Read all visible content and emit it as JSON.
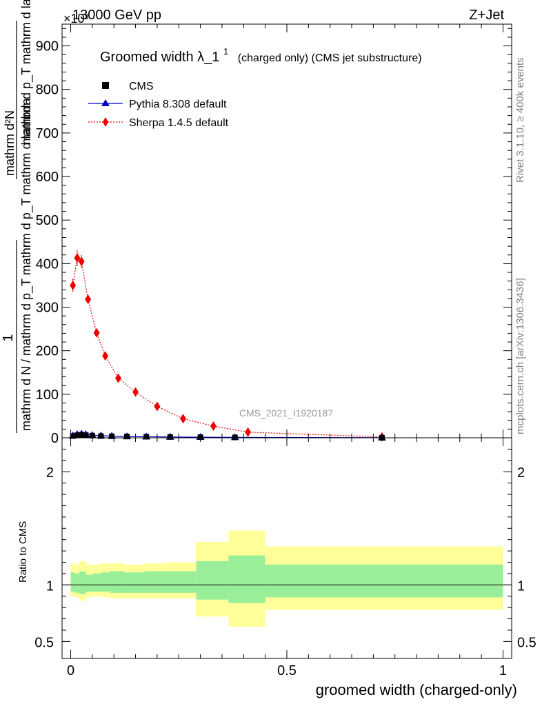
{
  "header": {
    "energy_label": "13000 GeV pp",
    "process_label": "Z+Jet",
    "exponent_label": "×10³"
  },
  "side": {
    "rivet_label": "Rivet 3.1.10, ≥ 400k events",
    "mcplots_label": "mcplots.cern.ch [arXiv:1306.3436]"
  },
  "analysis_label": "CMS_2021_I1920187",
  "colors": {
    "cms": "#000000",
    "pythia": "#0000cc",
    "sherpa": "#ee0000",
    "band_outer": "#ffff99",
    "band_inner": "#99ee99"
  },
  "chart_data": [
    {
      "type": "scatter",
      "title_main": "Groomed width λ_1",
      "title_sup": "1",
      "title_suffix": "(charged only) (CMS jet substructure)",
      "ylabel_num": "1",
      "ylabel_den": "mathrm d N / mathrm d p_T mathrm d p_T mathrm d lambda",
      "ylabel_right": "mathrm d²N",
      "ylim": [
        0,
        950
      ],
      "yticks": [
        0,
        100,
        200,
        300,
        400,
        500,
        600,
        700,
        800,
        900
      ],
      "y_unit_note": "values ×10³",
      "xlim": [
        -0.02,
        1.02
      ],
      "legend": [
        {
          "key": "cms",
          "label": "CMS",
          "marker": "square"
        },
        {
          "key": "pythia",
          "label": "Pythia 8.308 default",
          "marker": "triangle"
        },
        {
          "key": "sherpa",
          "label": "Sherpa 1.4.5 default",
          "marker": "diamond"
        }
      ],
      "series": [
        {
          "name": "CMS",
          "key": "cms",
          "x": [
            0.005,
            0.015,
            0.025,
            0.035,
            0.05,
            0.07,
            0.095,
            0.13,
            0.175,
            0.23,
            0.3,
            0.38,
            0.72
          ],
          "y": [
            4,
            6,
            7,
            6,
            5,
            4,
            3.5,
            3,
            2.5,
            2,
            1.5,
            1,
            0.2
          ]
        },
        {
          "name": "Pythia 8.308 default",
          "key": "pythia",
          "x": [
            0.005,
            0.015,
            0.025,
            0.035,
            0.05,
            0.07,
            0.095,
            0.13,
            0.175,
            0.23,
            0.3,
            0.38,
            0.72
          ],
          "y": [
            5,
            8,
            9,
            8,
            6,
            5,
            4,
            3,
            2.5,
            2,
            1.5,
            1,
            0.2
          ]
        },
        {
          "name": "Sherpa 1.4.5 default",
          "key": "sherpa",
          "x": [
            0.005,
            0.015,
            0.025,
            0.04,
            0.06,
            0.08,
            0.11,
            0.15,
            0.2,
            0.26,
            0.33,
            0.41,
            0.72
          ],
          "y": [
            350,
            413,
            405,
            318,
            241,
            188,
            137,
            105,
            72,
            44,
            27,
            13,
            2
          ],
          "yerr": [
            15,
            18,
            15,
            10,
            8,
            6,
            5,
            4,
            3,
            2,
            2,
            1,
            0.5
          ]
        }
      ]
    },
    {
      "type": "area",
      "ylabel": "Ratio to CMS",
      "xlabel": "groomed width (charged-only)",
      "xlim": [
        -0.02,
        1.02
      ],
      "ylim": [
        0.35,
        2.3
      ],
      "yticks": [
        0.5,
        1,
        2
      ],
      "yticklabels": [
        "0.5",
        "1",
        "2"
      ],
      "xticks": [
        0,
        0.5,
        1
      ],
      "xticklabels": [
        "0",
        "0.5",
        "1"
      ],
      "reference_line": 1,
      "bins": [
        {
          "lo": 0.0,
          "hi": 0.01,
          "outer": [
            0.9,
            1.19
          ],
          "inner": [
            0.94,
            1.11
          ]
        },
        {
          "lo": 0.01,
          "hi": 0.02,
          "outer": [
            0.89,
            1.18
          ],
          "inner": [
            0.93,
            1.1
          ]
        },
        {
          "lo": 0.02,
          "hi": 0.035,
          "outer": [
            0.86,
            1.21
          ],
          "inner": [
            0.92,
            1.12
          ]
        },
        {
          "lo": 0.035,
          "hi": 0.05,
          "outer": [
            0.89,
            1.18
          ],
          "inner": [
            0.94,
            1.09
          ]
        },
        {
          "lo": 0.05,
          "hi": 0.07,
          "outer": [
            0.9,
            1.18
          ],
          "inner": [
            0.94,
            1.1
          ]
        },
        {
          "lo": 0.07,
          "hi": 0.09,
          "outer": [
            0.89,
            1.19
          ],
          "inner": [
            0.94,
            1.11
          ]
        },
        {
          "lo": 0.09,
          "hi": 0.125,
          "outer": [
            0.88,
            1.19
          ],
          "inner": [
            0.93,
            1.12
          ]
        },
        {
          "lo": 0.125,
          "hi": 0.17,
          "outer": [
            0.88,
            1.18
          ],
          "inner": [
            0.93,
            1.11
          ]
        },
        {
          "lo": 0.17,
          "hi": 0.22,
          "outer": [
            0.88,
            1.19
          ],
          "inner": [
            0.93,
            1.12
          ]
        },
        {
          "lo": 0.22,
          "hi": 0.29,
          "outer": [
            0.88,
            1.2
          ],
          "inner": [
            0.93,
            1.12
          ]
        },
        {
          "lo": 0.29,
          "hi": 0.365,
          "outer": [
            0.72,
            1.38
          ],
          "inner": [
            0.87,
            1.21
          ]
        },
        {
          "lo": 0.365,
          "hi": 0.45,
          "outer": [
            0.63,
            1.48
          ],
          "inner": [
            0.84,
            1.26
          ]
        },
        {
          "lo": 0.45,
          "hi": 1.0,
          "outer": [
            0.78,
            1.34
          ],
          "inner": [
            0.89,
            1.18
          ]
        }
      ]
    }
  ]
}
